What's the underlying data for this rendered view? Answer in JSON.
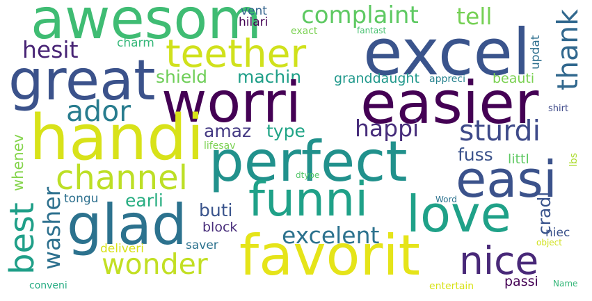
{
  "words": [
    {
      "text": "awesom",
      "color": "#3fbc73"
    },
    {
      "text": "excel",
      "color": "#3a548c"
    },
    {
      "text": "complaint",
      "color": "#5ec962"
    },
    {
      "text": "tell",
      "color": "#75d054"
    },
    {
      "text": "vent",
      "color": "#33638d"
    },
    {
      "text": "hilari",
      "color": "#440154"
    },
    {
      "text": "exact",
      "color": "#7ad151"
    },
    {
      "text": "fantast",
      "color": "#46c06f"
    },
    {
      "text": "hesit",
      "color": "#482475"
    },
    {
      "text": "teether",
      "color": "#d0e11c"
    },
    {
      "text": "charm",
      "color": "#35b779"
    },
    {
      "text": "updat",
      "color": "#2e6f8e"
    },
    {
      "text": "great",
      "color": "#3b528b"
    },
    {
      "text": "thank",
      "color": "#31688e"
    },
    {
      "text": "shield",
      "color": "#6ece58"
    },
    {
      "text": "machin",
      "color": "#1f9f88"
    },
    {
      "text": "granddaught",
      "color": "#1f988b"
    },
    {
      "text": "appreci",
      "color": "#26828e"
    },
    {
      "text": "beauti",
      "color": "#7ad151"
    },
    {
      "text": "worri",
      "color": "#440154"
    },
    {
      "text": "easier",
      "color": "#440154"
    },
    {
      "text": "ador",
      "color": "#287c8e"
    },
    {
      "text": "handi",
      "color": "#d8e219"
    },
    {
      "text": "amaz",
      "color": "#443983"
    },
    {
      "text": "type",
      "color": "#20a486"
    },
    {
      "text": "happi",
      "color": "#472d7b"
    },
    {
      "text": "sturdi",
      "color": "#3e4a89"
    },
    {
      "text": "shirt",
      "color": "#3e4989"
    },
    {
      "text": "lifesav",
      "color": "#7ad151"
    },
    {
      "text": "perfect",
      "color": "#21918c"
    },
    {
      "text": "fuss",
      "color": "#3b528b"
    },
    {
      "text": "littl",
      "color": "#5ec962"
    },
    {
      "text": "lbs",
      "color": "#addc30"
    },
    {
      "text": "whenev",
      "color": "#84d44b"
    },
    {
      "text": "channel",
      "color": "#bddf26"
    },
    {
      "text": "easi",
      "color": "#3b528b"
    },
    {
      "text": "dtype",
      "color": "#52c569"
    },
    {
      "text": "best",
      "color": "#1f9f88"
    },
    {
      "text": "washer",
      "color": "#2d708e"
    },
    {
      "text": "tongu",
      "color": "#2d708e"
    },
    {
      "text": "earli",
      "color": "#27ad81"
    },
    {
      "text": "funni",
      "color": "#1fa188"
    },
    {
      "text": "love",
      "color": "#1fa188"
    },
    {
      "text": "Word",
      "color": "#2c728e"
    },
    {
      "text": "cradl",
      "color": "#3a548c"
    },
    {
      "text": "glad",
      "color": "#2c728e"
    },
    {
      "text": "buti",
      "color": "#3a548c"
    },
    {
      "text": "block",
      "color": "#472c7a"
    },
    {
      "text": "excelent",
      "color": "#2c728e"
    },
    {
      "text": "niec",
      "color": "#3b528b"
    },
    {
      "text": "object",
      "color": "#d0e11c"
    },
    {
      "text": "wonder",
      "color": "#c2df23"
    },
    {
      "text": "saver",
      "color": "#2c728e"
    },
    {
      "text": "deliveri",
      "color": "#d8e219"
    },
    {
      "text": "favorit",
      "color": "#e5e419"
    },
    {
      "text": "nice",
      "color": "#482878"
    },
    {
      "text": "conveni",
      "color": "#25ab82"
    },
    {
      "text": "entertain",
      "color": "#d8e219"
    },
    {
      "text": "passi",
      "color": "#440154"
    },
    {
      "text": "Name",
      "color": "#35b779"
    }
  ]
}
